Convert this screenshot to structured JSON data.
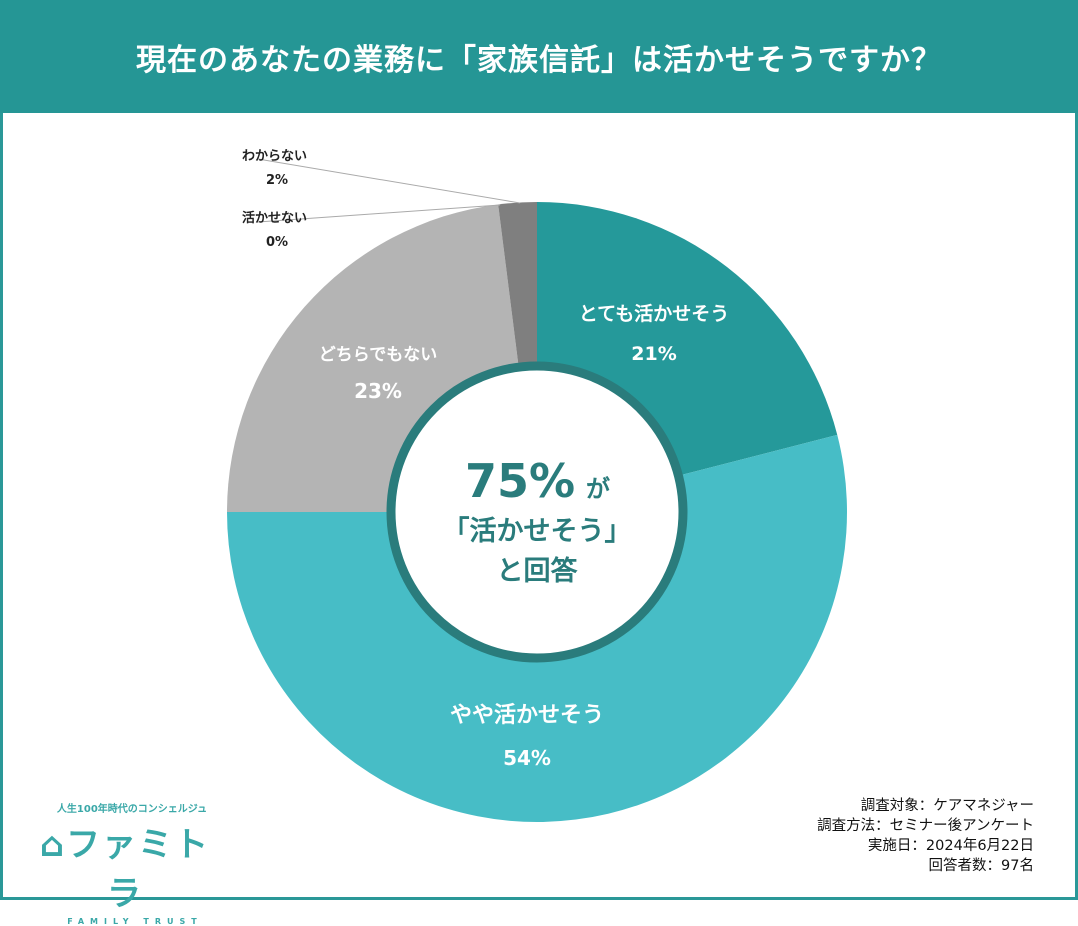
{
  "title": "現在のあなたの業務に「家族信託」は活かせそうですか？",
  "chart_data": {
    "type": "pie",
    "donut_center_text": {
      "line1": "75%",
      "line1_suffix": "が",
      "line2": "「活かせそう」",
      "line3": "と回答"
    },
    "slices": [
      {
        "label": "とても活かせそう",
        "value": 21,
        "display": "21%",
        "color": "#25999a"
      },
      {
        "label": "やや活かせそう",
        "value": 54,
        "display": "54%",
        "color": "#47bdc6"
      },
      {
        "label": "どちらでもない",
        "value": 23,
        "display": "23%",
        "color": "#b4b4b4"
      },
      {
        "label": "活かせない",
        "value": 0,
        "display": "0%",
        "color": "#999999"
      },
      {
        "label": "わからない",
        "value": 2,
        "display": "2%",
        "color": "#7f7f7f"
      }
    ]
  },
  "logo": {
    "tagline": "人生100年時代のコンシェルジュ",
    "name": "ファミトラ",
    "sub": "FAMILY TRUST"
  },
  "notes": [
    "調査対象：ケアマネジャー",
    "調査方法：セミナー後アンケート",
    "実施日：2024年6月22日",
    "回答者数：97名"
  ]
}
